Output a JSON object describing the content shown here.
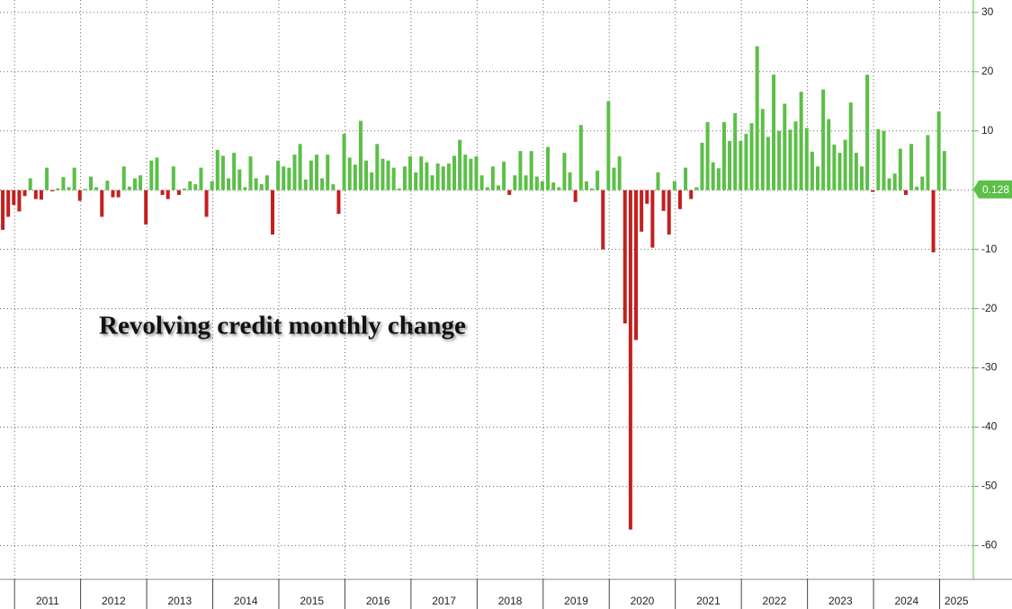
{
  "chart_data": {
    "type": "bar",
    "title": "Revolving credit monthly change",
    "values": [
      -6.7,
      -4.5,
      -2.5,
      -3.6,
      -1,
      2,
      -1.5,
      -1.6,
      3.8,
      -0.2,
      0.3,
      2.2,
      0.5,
      3.8,
      -1.8,
      0.2,
      2.3,
      0.5,
      -4.5,
      1.6,
      -1.2,
      -1.2,
      4,
      0.6,
      2,
      2.5,
      -5.8,
      5,
      5.5,
      -0.8,
      -1.5,
      4,
      -0.8,
      0.3,
      1.5,
      1,
      3.8,
      -4.5,
      1.5,
      6.8,
      5.8,
      2,
      6.3,
      3.5,
      0.5,
      5.7,
      2,
      1,
      2.5,
      -7.5,
      5,
      4,
      3.8,
      6,
      7.8,
      1.8,
      5,
      6,
      2,
      6,
      1,
      -4,
      9.5,
      5.5,
      4.3,
      11.7,
      5,
      3,
      7.8,
      5.3,
      5,
      3.8,
      0.3,
      4,
      5.7,
      3,
      5.7,
      4.7,
      2.5,
      4.5,
      4,
      4.5,
      5.8,
      8.5,
      6,
      5.3,
      5.7,
      2.5,
      0.5,
      4,
      0.8,
      4.8,
      -0.8,
      2.5,
      6.6,
      2.5,
      6.6,
      2.3,
      1.5,
      7.3,
      1.3,
      0.5,
      6.3,
      3,
      -2,
      11,
      1.5,
      0.3,
      3.3,
      -10,
      15,
      3.8,
      5.7,
      -22.5,
      -57.3,
      -25.3,
      -7,
      -2.3,
      -9.7,
      3,
      -3.5,
      -7.5,
      1.5,
      -3.2,
      3.8,
      -1.5,
      0.5,
      8,
      11.5,
      4.7,
      3.7,
      11.5,
      8.3,
      13,
      8.3,
      9.5,
      11.3,
      24.3,
      13.7,
      9,
      19.5,
      10,
      14.6,
      10.2,
      11.6,
      16.6,
      10.5,
      6.5,
      4,
      17,
      12,
      7.7,
      6.3,
      8.5,
      14.8,
      6.3,
      4,
      19.5,
      -0.3,
      10.3,
      10,
      2,
      2.8,
      7,
      -0.8,
      7.8,
      0.6,
      2.3,
      9.3,
      -10.5,
      13.3,
      6.6,
      0.128
    ],
    "positive_color": "#5cbf48",
    "negative_color": "#c41f1f",
    "xlim": [
      2010.78,
      2025.51
    ],
    "xticks": [
      2011,
      2012,
      2013,
      2014,
      2015,
      2016,
      2017,
      2018,
      2019,
      2020,
      2021,
      2022,
      2023,
      2024,
      2025
    ],
    "ylim": [
      -65.7,
      32.1
    ],
    "yticks": [
      -60,
      -50,
      -40,
      -30,
      -20,
      -10,
      0,
      10,
      20,
      30
    ],
    "grid": true
  }
}
